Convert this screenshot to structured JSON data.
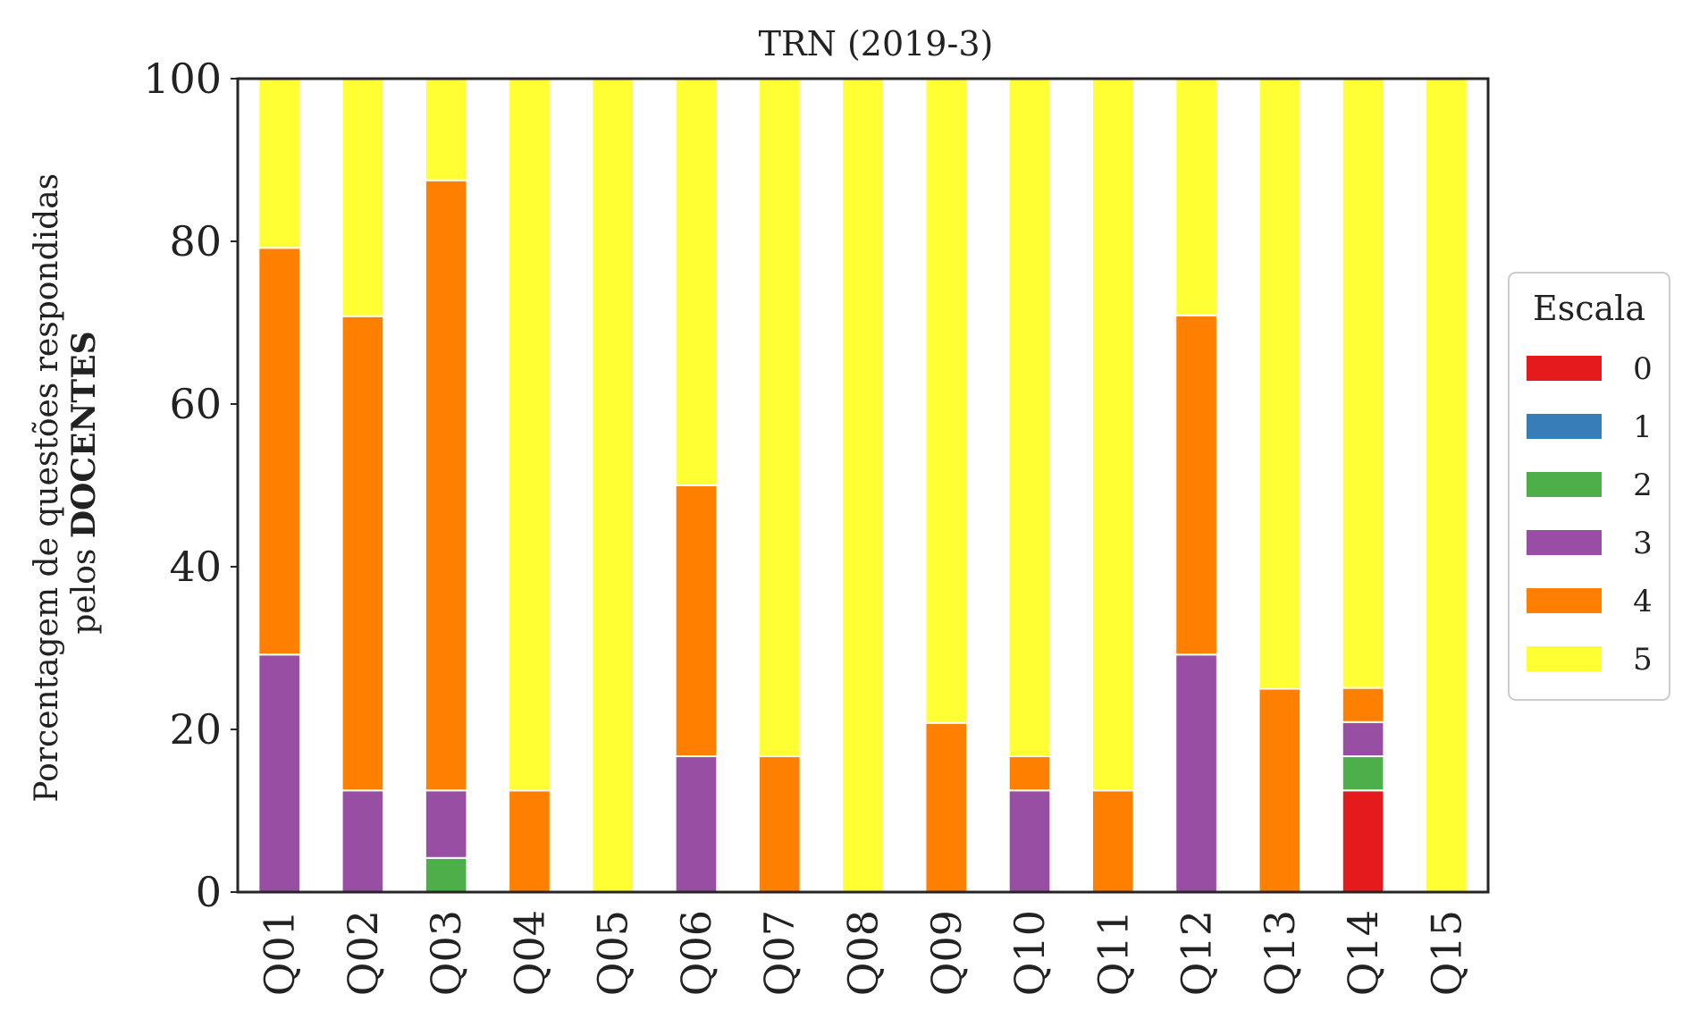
{
  "chart_data": {
    "type": "bar",
    "stacked": true,
    "title": "TRN (2019-3)",
    "ylabel_line1": "Porcentagem de questões respondidas",
    "ylabel_line2_prefix": "pelos ",
    "ylabel_line2_bold": "DOCENTES",
    "xlabel": "",
    "ylim": [
      0,
      100
    ],
    "yticks": [
      0,
      20,
      40,
      60,
      80,
      100
    ],
    "grid": false,
    "legend": {
      "title": "Escala",
      "placement": "right"
    },
    "categories": [
      "Q01",
      "Q02",
      "Q03",
      "Q04",
      "Q05",
      "Q06",
      "Q07",
      "Q08",
      "Q09",
      "Q10",
      "Q11",
      "Q12",
      "Q13",
      "Q14",
      "Q15"
    ],
    "series": [
      {
        "name": "0",
        "color": "#e41a1c",
        "values": [
          0,
          0,
          0,
          0,
          0,
          0,
          0,
          0,
          0,
          0,
          0,
          0,
          0,
          12.5,
          0
        ]
      },
      {
        "name": "1",
        "color": "#377eb8",
        "values": [
          0,
          0,
          0,
          0,
          0,
          0,
          0,
          0,
          0,
          0,
          0,
          0,
          0,
          0,
          0
        ]
      },
      {
        "name": "2",
        "color": "#4daf4a",
        "values": [
          0,
          0,
          4.2,
          0,
          0,
          0,
          0,
          0,
          0,
          0,
          0,
          0,
          0,
          4.2,
          0
        ]
      },
      {
        "name": "3",
        "color": "#984ea3",
        "values": [
          29.2,
          12.5,
          8.3,
          0,
          0,
          16.7,
          0,
          0,
          0,
          12.5,
          0,
          29.2,
          0,
          4.2,
          0
        ]
      },
      {
        "name": "4",
        "color": "#ff7f00",
        "values": [
          50,
          58.3,
          75,
          12.5,
          0,
          33.3,
          16.7,
          0,
          20.8,
          4.2,
          12.5,
          41.7,
          25,
          4.2,
          0
        ]
      },
      {
        "name": "5",
        "color": "#ffff33",
        "values": [
          20.8,
          29.2,
          12.5,
          87.5,
          100,
          50,
          83.3,
          100,
          79.2,
          83.3,
          87.5,
          29.1,
          75,
          75,
          100
        ]
      }
    ]
  }
}
